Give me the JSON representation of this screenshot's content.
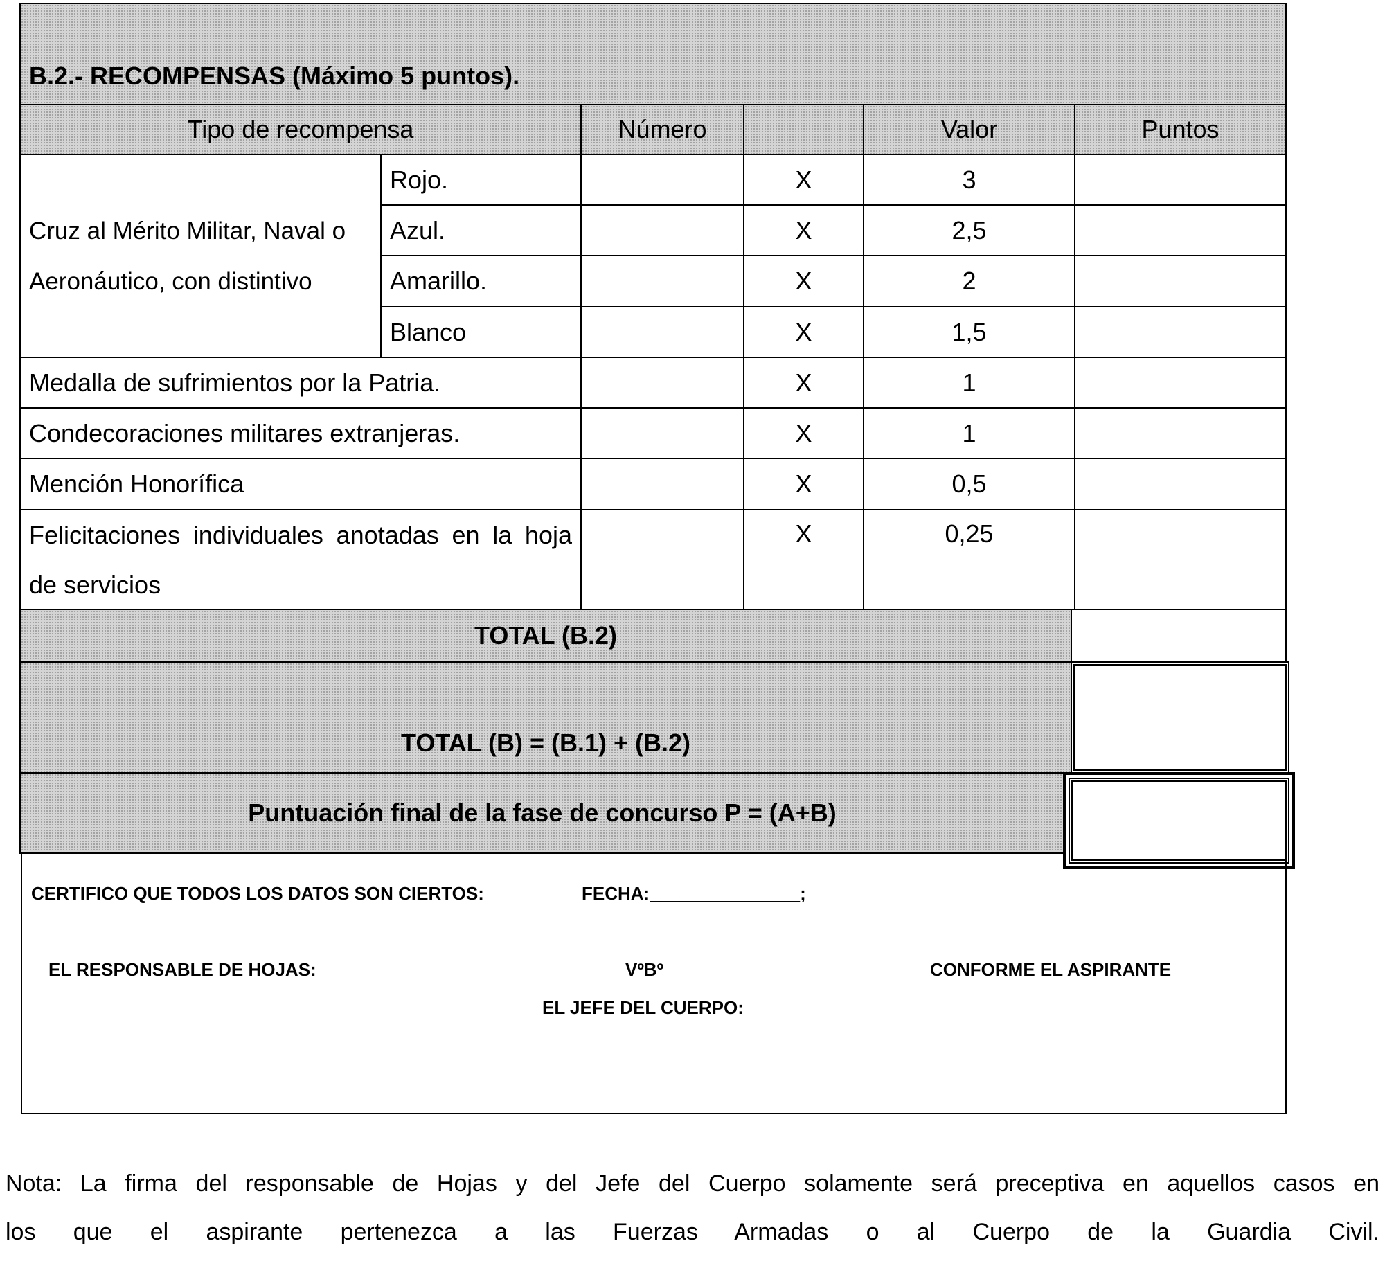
{
  "section_title": "B.2.- RECOMPENSAS (Máximo 5 puntos).",
  "headers": {
    "tipo": "Tipo de recompensa",
    "numero": "Número",
    "blank": "",
    "valor": "Valor",
    "puntos": "Puntos"
  },
  "cruz_label": "Cruz al Mérito Militar, Naval o Aeronáutico, con distintivo",
  "rows": [
    {
      "tipo": "Rojo.",
      "x": "X",
      "valor": "3"
    },
    {
      "tipo": "Azul.",
      "x": "X",
      "valor": "2,5"
    },
    {
      "tipo": "Amarillo.",
      "x": "X",
      "valor": "2"
    },
    {
      "tipo": "Blanco",
      "x": "X",
      "valor": "1,5"
    },
    {
      "tipo": "Medalla de sufrimientos por la Patria.",
      "x": "X",
      "valor": "1"
    },
    {
      "tipo": "Condecoraciones militares extranjeras.",
      "x": "X",
      "valor": "1"
    },
    {
      "tipo": "Mención Honorífica",
      "x": "X",
      "valor": "0,5"
    },
    {
      "tipo": "Felicitaciones individuales anotadas en la hoja de servicios",
      "x": "X",
      "valor": "0,25"
    }
  ],
  "total_b2": "TOTAL (B.2)",
  "total_b": "TOTAL (B) = (B.1) + (B.2)",
  "puntuacion": "Puntuación final de la fase de concurso P = (A+B)",
  "cert": {
    "certifico": "CERTIFICO QUE TODOS LOS DATOS SON CIERTOS:",
    "fecha": "FECHA:_______________;",
    "responsable": "EL RESPONSABLE DE HOJAS:",
    "vobo": "VºBº",
    "jefe": "EL JEFE DEL CUERPO:",
    "conforme": "CONFORME EL ASPIRANTE"
  },
  "nota_line1": "Nota: La firma del responsable de Hojas y del Jefe del Cuerpo solamente será preceptiva en aquellos casos en",
  "nota_line2": "los que el aspirante pertenezca a las Fuerzas Armadas o al Cuerpo de la Guardia Civil."
}
